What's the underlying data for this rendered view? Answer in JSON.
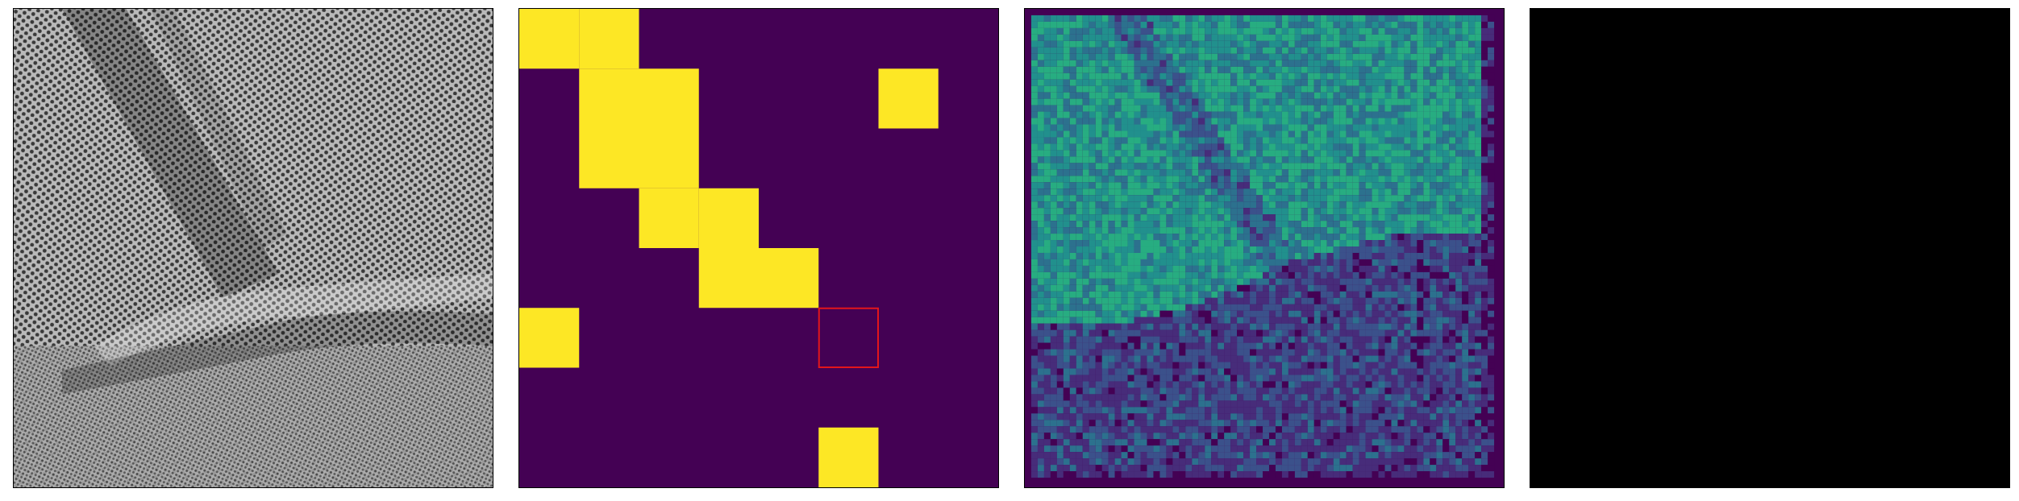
{
  "panels": [
    {
      "id": "sem-image",
      "kind": "grayscale micrograph"
    },
    {
      "id": "patch-mask",
      "kind": "binary grid",
      "grid_cols": 8,
      "grid_rows": 8,
      "on_cells": [
        [
          0,
          0
        ],
        [
          0,
          1
        ],
        [
          1,
          1
        ],
        [
          1,
          2
        ],
        [
          2,
          1
        ],
        [
          2,
          2
        ],
        [
          3,
          2
        ],
        [
          3,
          3
        ],
        [
          4,
          3
        ],
        [
          4,
          4
        ],
        [
          5,
          0
        ],
        [
          7,
          5
        ],
        [
          1,
          6
        ]
      ],
      "highlight_cell": [
        5,
        5
      ]
    },
    {
      "id": "heatmap",
      "kind": "viridis map"
    },
    {
      "id": "blank",
      "kind": "empty black"
    }
  ],
  "colors": {
    "viridis_low": "#440154",
    "viridis_high": "#fde725",
    "highlight": "#e3161b",
    "blank": "#000000"
  }
}
